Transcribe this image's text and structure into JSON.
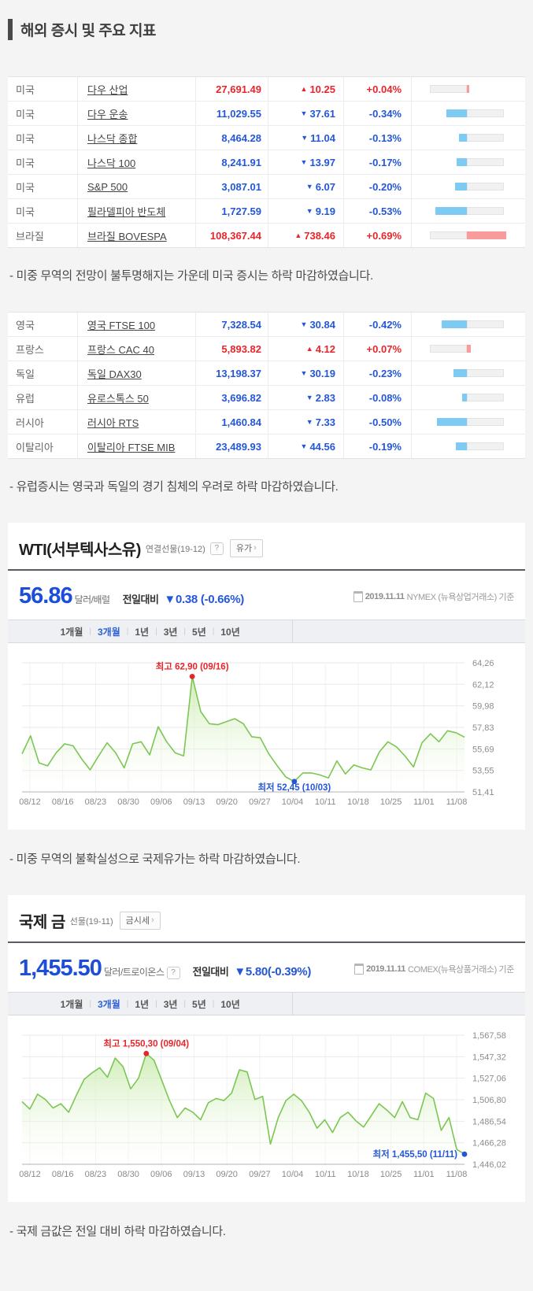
{
  "page_title": "해외 증시 및 주요 지표",
  "colors": {
    "up": "#e8252a",
    "down": "#2457d8",
    "bar_up": "#f99b9b",
    "bar_down": "#7dcbf2",
    "price_blue": "#1c4ed9",
    "chart_line": "#7cc653",
    "chart_fill_top": "#c3e9a4",
    "grid": "#e9e9e9"
  },
  "index_tables": [
    {
      "name": "americas",
      "rows": [
        {
          "country": "미국",
          "index_name": "다우 산업",
          "value": "27,691.49",
          "arrow": "▲",
          "change": "10.25",
          "pct": "+0.04%",
          "dir": "up"
        },
        {
          "country": "미국",
          "index_name": "다우 운송",
          "value": "11,029.55",
          "arrow": "▼",
          "change": "37.61",
          "pct": "-0.34%",
          "dir": "down"
        },
        {
          "country": "미국",
          "index_name": "나스닥 종합",
          "value": "8,464.28",
          "arrow": "▼",
          "change": "11.04",
          "pct": "-0.13%",
          "dir": "down"
        },
        {
          "country": "미국",
          "index_name": "나스닥 100",
          "value": "8,241.91",
          "arrow": "▼",
          "change": "13.97",
          "pct": "-0.17%",
          "dir": "down"
        },
        {
          "country": "미국",
          "index_name": "S&P 500",
          "value": "3,087.01",
          "arrow": "▼",
          "change": "6.07",
          "pct": "-0.20%",
          "dir": "down"
        },
        {
          "country": "미국",
          "index_name": "필라델피아 반도체",
          "value": "1,727.59",
          "arrow": "▼",
          "change": "9.19",
          "pct": "-0.53%",
          "dir": "down"
        },
        {
          "country": "브라질",
          "index_name": "브라질 BOVESPA",
          "value": "108,367.44",
          "arrow": "▲",
          "change": "738.46",
          "pct": "+0.69%",
          "dir": "up"
        }
      ]
    },
    {
      "name": "europe",
      "rows": [
        {
          "country": "영국",
          "index_name": "영국 FTSE 100",
          "value": "7,328.54",
          "arrow": "▼",
          "change": "30.84",
          "pct": "-0.42%",
          "dir": "down"
        },
        {
          "country": "프랑스",
          "index_name": "프랑스 CAC 40",
          "value": "5,893.82",
          "arrow": "▲",
          "change": "4.12",
          "pct": "+0.07%",
          "dir": "up"
        },
        {
          "country": "독일",
          "index_name": "독일 DAX30",
          "value": "13,198.37",
          "arrow": "▼",
          "change": "30.19",
          "pct": "-0.23%",
          "dir": "down"
        },
        {
          "country": "유럽",
          "index_name": "유로스톡스 50",
          "value": "3,696.82",
          "arrow": "▼",
          "change": "2.83",
          "pct": "-0.08%",
          "dir": "down"
        },
        {
          "country": "러시아",
          "index_name": "러시아 RTS",
          "value": "1,460.84",
          "arrow": "▼",
          "change": "7.33",
          "pct": "-0.50%",
          "dir": "down"
        },
        {
          "country": "이탈리아",
          "index_name": "이탈리아 FTSE MIB",
          "value": "23,489.93",
          "arrow": "▼",
          "change": "44.56",
          "pct": "-0.19%",
          "dir": "down"
        }
      ]
    }
  ],
  "comments": {
    "us": "- 미중 무역의 전망이 불투명해지는 가운데 미국 증시는 하락 마감하였습니다.",
    "europe": "- 유럽증시는 영국과 독일의 경기 침체의 우려로 하락 마감하였습니다.",
    "oil": "- 미중 무역의 불확실성으로 국제유가는 하락 마감하였습니다.",
    "gold": "- 국제 금값은 전일 대비 하락 마감하였습니다."
  },
  "wti_panel": {
    "title": "WTI(서부텍사스유)",
    "subtitle": "연결선물(19-12)",
    "help_icon": "?",
    "link_button": "유가",
    "link_arrow": "›",
    "price": "56.86",
    "unit": "달러/배럴",
    "change_label": "전일대비",
    "change": "▼0.38 (-0.66%)",
    "reference_date": "2019.11.11",
    "reference_rest": "NYMEX (뉴욕상업거래소) 기준",
    "periods": [
      "1개월",
      "3개월",
      "1년",
      "3년",
      "5년",
      "10년"
    ],
    "selected_period": "3개월"
  },
  "gold_panel": {
    "title": "국제 금",
    "subtitle": "선물(19-11)",
    "help_icon": "?",
    "link_button": "금시세",
    "link_arrow": "›",
    "price": "1,455.50",
    "unit": "달러/트로이온스",
    "change_label": "전일대비",
    "change": "▼5.80(-0.39%)",
    "reference_date": "2019.11.11",
    "reference_rest": "COMEX(뉴욕상품거래소) 기준",
    "periods": [
      "1개월",
      "3개월",
      "1년",
      "3년",
      "5년",
      "10년"
    ],
    "selected_period": "3개월"
  },
  "chart_data": [
    {
      "id": "wti",
      "type": "area",
      "title": "WTI(서부텍사스유) 3개월 추이",
      "x_labels": [
        "08/12",
        "08/16",
        "08/23",
        "08/30",
        "09/06",
        "09/13",
        "09/20",
        "09/27",
        "10/04",
        "10/11",
        "10/18",
        "10/25",
        "11/01",
        "11/08"
      ],
      "y_tick_labels": [
        "64,26",
        "62,12",
        "59,98",
        "57,83",
        "55,69",
        "53,55",
        "51,41"
      ],
      "y_tick_values": [
        64.26,
        62.12,
        59.98,
        57.83,
        55.69,
        53.55,
        51.41
      ],
      "ylim": [
        51.41,
        64.26
      ],
      "values": [
        55.2,
        57.0,
        54.3,
        54.0,
        55.3,
        56.2,
        56.0,
        54.7,
        53.6,
        55.0,
        56.3,
        55.3,
        53.8,
        56.2,
        56.4,
        55.1,
        57.9,
        56.4,
        55.3,
        55.0,
        62.9,
        59.4,
        58.2,
        58.1,
        58.4,
        58.7,
        58.2,
        56.9,
        56.8,
        55.2,
        54.0,
        52.9,
        52.45,
        53.3,
        53.3,
        53.1,
        52.8,
        54.5,
        53.2,
        54.1,
        53.8,
        53.6,
        55.4,
        56.4,
        55.9,
        55.0,
        53.9,
        56.3,
        57.2,
        56.4,
        57.5,
        57.3,
        56.86
      ],
      "max_annotation": "최고 62,90 (09/16)",
      "min_annotation": "최저 52,45 (10/03)",
      "grid": true,
      "legend": false
    },
    {
      "id": "gold",
      "type": "area",
      "title": "국제 금 3개월 추이",
      "x_labels": [
        "08/12",
        "08/16",
        "08/23",
        "08/30",
        "09/06",
        "09/13",
        "09/20",
        "09/27",
        "10/04",
        "10/11",
        "10/18",
        "10/25",
        "11/01",
        "11/08"
      ],
      "y_tick_labels": [
        "1,567,58",
        "1,547,32",
        "1,527,06",
        "1,506,80",
        "1,486,54",
        "1,466,28",
        "1,446,02"
      ],
      "y_tick_values": [
        1567.58,
        1547.32,
        1527.06,
        1506.8,
        1486.54,
        1466.28,
        1446.02
      ],
      "ylim": [
        1446.02,
        1567.58
      ],
      "values": [
        1505,
        1498,
        1512,
        1507,
        1499,
        1503,
        1495,
        1511,
        1526,
        1532,
        1537,
        1528,
        1546,
        1538,
        1517,
        1527,
        1550.3,
        1544,
        1525,
        1506,
        1490,
        1499,
        1495,
        1488,
        1504,
        1508,
        1506,
        1513,
        1535,
        1533,
        1507,
        1510,
        1465,
        1490,
        1506,
        1512,
        1506,
        1495,
        1480,
        1488,
        1476,
        1490,
        1495,
        1487,
        1481,
        1492,
        1503,
        1497,
        1490,
        1505,
        1490,
        1488,
        1513,
        1508,
        1478,
        1490,
        1460,
        1455.5
      ],
      "max_annotation": "최고 1,550,30 (09/04)",
      "min_annotation": "최저 1,455,50 (11/11)",
      "grid": true,
      "legend": false
    }
  ]
}
